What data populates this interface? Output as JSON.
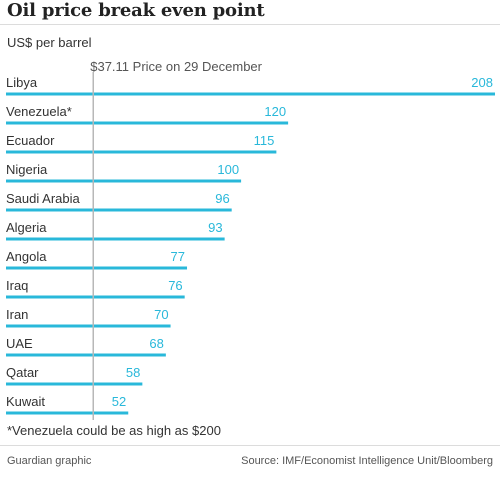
{
  "header": {
    "title": "Oil price break even point",
    "unit_label": "US$ per barrel"
  },
  "chart_data": {
    "type": "bar",
    "orientation": "horizontal",
    "categories": [
      "Libya",
      "Venezuela*",
      "Ecuador",
      "Nigeria",
      "Saudi Arabia",
      "Algeria",
      "Angola",
      "Iraq",
      "Iran",
      "UAE",
      "Qatar",
      "Kuwait"
    ],
    "values": [
      208,
      120,
      115,
      100,
      96,
      93,
      77,
      76,
      70,
      68,
      58,
      52
    ],
    "xlim": [
      0,
      208
    ],
    "grid": false,
    "reference_line": {
      "value": 37.11,
      "label": "$37.11 Price on 29 December"
    },
    "bar_color": "#29b8da",
    "label_color": "#29b8da"
  },
  "footer": {
    "footnote": "*Venezuela could be as high as $200",
    "credit": "Guardian graphic",
    "source": "Source: IMF/Economist Intelligence Unit/Bloomberg"
  }
}
